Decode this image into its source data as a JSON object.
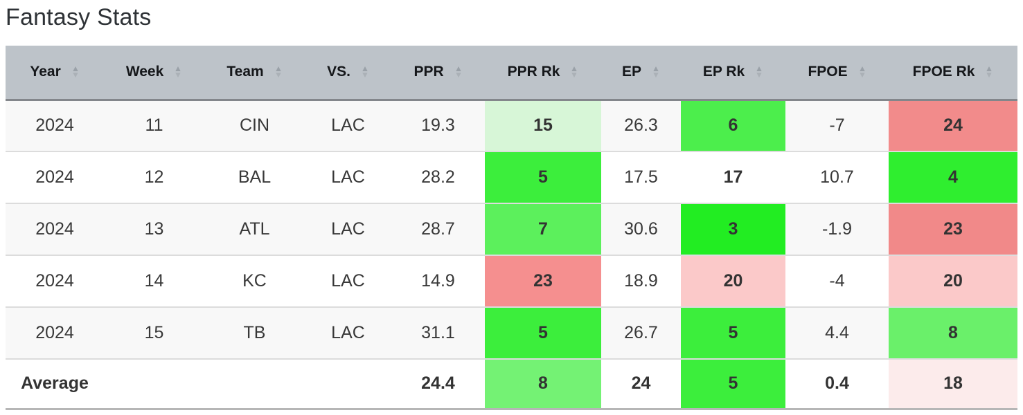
{
  "title": "Fantasy Stats",
  "icons": {
    "sort_asc": "▲",
    "sort_desc": "▼"
  },
  "theme": {
    "header_bg": "#bdc3c9",
    "header_border": "#83868b",
    "row_alt_bg": "#f8f8f8",
    "row_border": "#dcdcdc",
    "table_bottom_border": "#b6b6b6",
    "best_rank_green": "#22ed22",
    "worst_rank_red": "#f28b8b"
  },
  "table": {
    "columns": [
      {
        "key": "year",
        "label": "Year",
        "sortable": true
      },
      {
        "key": "week",
        "label": "Week",
        "sortable": true
      },
      {
        "key": "team",
        "label": "Team",
        "sortable": true
      },
      {
        "key": "vs",
        "label": "VS.",
        "sortable": true
      },
      {
        "key": "ppr",
        "label": "PPR",
        "sortable": true
      },
      {
        "key": "ppr_rk",
        "label": "PPR Rk",
        "sortable": true
      },
      {
        "key": "ep",
        "label": "EP",
        "sortable": true
      },
      {
        "key": "ep_rk",
        "label": "EP Rk",
        "sortable": true
      },
      {
        "key": "fpoe",
        "label": "FPOE",
        "sortable": true
      },
      {
        "key": "fpoe_rk",
        "label": "FPOE Rk",
        "sortable": true
      }
    ],
    "rows": [
      {
        "name": "table-row",
        "cells": [
          {
            "text": "2024"
          },
          {
            "text": "11"
          },
          {
            "text": "CIN"
          },
          {
            "text": "LAC"
          },
          {
            "text": "19.3"
          },
          {
            "text": "15",
            "bold": true,
            "bg": "#d7f6d7"
          },
          {
            "text": "26.3"
          },
          {
            "text": "6",
            "bold": true,
            "bg": "#4cee4c"
          },
          {
            "text": "-7"
          },
          {
            "text": "24",
            "bold": true,
            "bg": "#f28b8b"
          }
        ]
      },
      {
        "name": "table-row",
        "cells": [
          {
            "text": "2024"
          },
          {
            "text": "12"
          },
          {
            "text": "BAL"
          },
          {
            "text": "LAC"
          },
          {
            "text": "28.2"
          },
          {
            "text": "5",
            "bold": true,
            "bg": "#3cee3c"
          },
          {
            "text": "17.5"
          },
          {
            "text": "17",
            "bold": true
          },
          {
            "text": "10.7"
          },
          {
            "text": "4",
            "bold": true,
            "bg": "#2fee2f"
          }
        ]
      },
      {
        "name": "table-row",
        "cells": [
          {
            "text": "2024"
          },
          {
            "text": "13"
          },
          {
            "text": "ATL"
          },
          {
            "text": "LAC"
          },
          {
            "text": "28.7"
          },
          {
            "text": "7",
            "bold": true,
            "bg": "#5cf05c"
          },
          {
            "text": "30.6"
          },
          {
            "text": "3",
            "bold": true,
            "bg": "#22ed22"
          },
          {
            "text": "-1.9"
          },
          {
            "text": "23",
            "bold": true,
            "bg": "#f18989"
          }
        ]
      },
      {
        "name": "table-row",
        "cells": [
          {
            "text": "2024"
          },
          {
            "text": "14"
          },
          {
            "text": "KC"
          },
          {
            "text": "LAC"
          },
          {
            "text": "14.9"
          },
          {
            "text": "23",
            "bold": true,
            "bg": "#f58f8f"
          },
          {
            "text": "18.9"
          },
          {
            "text": "20",
            "bold": true,
            "bg": "#fbc9c9"
          },
          {
            "text": "-4"
          },
          {
            "text": "20",
            "bold": true,
            "bg": "#fbc9c9"
          }
        ]
      },
      {
        "name": "table-row",
        "cells": [
          {
            "text": "2024"
          },
          {
            "text": "15"
          },
          {
            "text": "TB"
          },
          {
            "text": "LAC"
          },
          {
            "text": "31.1"
          },
          {
            "text": "5",
            "bold": true,
            "bg": "#3cee3c"
          },
          {
            "text": "26.7"
          },
          {
            "text": "5",
            "bold": true,
            "bg": "#3cee3c"
          },
          {
            "text": "4.4"
          },
          {
            "text": "8",
            "bold": true,
            "bg": "#6af06a"
          }
        ]
      },
      {
        "name": "average-row",
        "is_average": true,
        "cells": [
          {
            "text": "Average",
            "bold": true
          },
          {
            "text": ""
          },
          {
            "text": ""
          },
          {
            "text": ""
          },
          {
            "text": "24.4",
            "bold": true
          },
          {
            "text": "8",
            "bold": true,
            "bg": "#74f274"
          },
          {
            "text": "24",
            "bold": true
          },
          {
            "text": "5",
            "bold": true,
            "bg": "#3cee3c"
          },
          {
            "text": "0.4",
            "bold": true
          },
          {
            "text": "18",
            "bold": true,
            "bg": "#fcebeb"
          }
        ]
      }
    ]
  }
}
